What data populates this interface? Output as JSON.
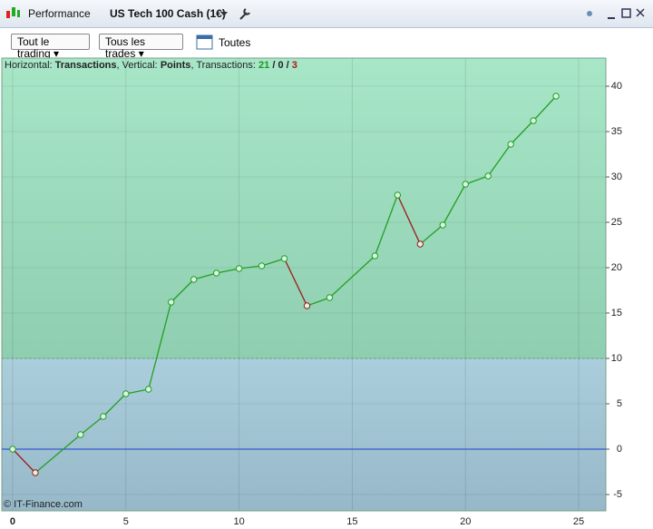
{
  "window": {
    "tab": "Performance",
    "instrument": "US Tech 100 Cash (1€)"
  },
  "toolbar": {
    "filter_trading": "Tout le trading",
    "filter_trades": "Tous les trades",
    "period": "Toutes"
  },
  "legend": {
    "h_label": "Horizontal:",
    "h_value": "Transactions",
    "v_label": ", Vertical:",
    "v_value": "Points",
    "t_label": ", Transactions:",
    "wins": 21,
    "sep1": "/",
    "even": 0,
    "sep2": "/",
    "losses": 3
  },
  "footer": "© IT-Finance.com",
  "chart_data": {
    "type": "line",
    "x": [
      0,
      1,
      3,
      4,
      5,
      6,
      7,
      8,
      9,
      10,
      11,
      12,
      13,
      14,
      16,
      17,
      18,
      19,
      20,
      21,
      22,
      23,
      24
    ],
    "values": [
      0,
      -2.6,
      1.6,
      3.6,
      6.1,
      6.6,
      16.2,
      18.7,
      19.4,
      19.9,
      20.2,
      21.0,
      15.8,
      16.7,
      21.3,
      28.0,
      22.6,
      24.7,
      29.2,
      30.1,
      33.6,
      36.2,
      38.9
    ],
    "up_color": "#22a022",
    "down_color": "#a01818",
    "xlim": [
      -0.48,
      26.2
    ],
    "ylim": [
      -6.8,
      43.1
    ],
    "xticks": [
      0,
      5,
      10,
      15,
      20,
      25
    ],
    "yticks": [
      -5,
      0,
      5,
      10,
      15,
      20,
      25,
      30,
      35,
      40
    ],
    "zone_boundary": 10,
    "grid": true
  }
}
